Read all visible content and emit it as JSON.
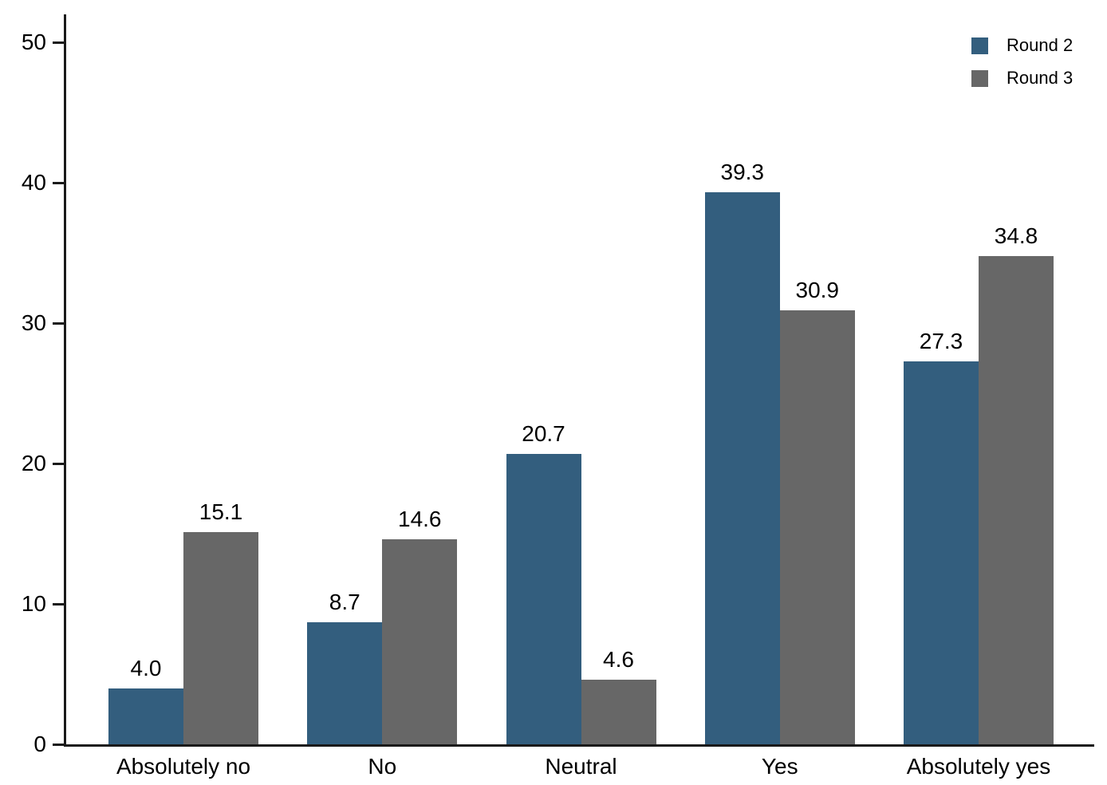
{
  "chart_data": {
    "type": "bar",
    "title": "",
    "xlabel": "",
    "ylabel": "",
    "categories": [
      "Absolutely no",
      "No",
      "Neutral",
      "Yes",
      "Absolutely yes"
    ],
    "series": [
      {
        "name": "Round 2",
        "color": "#335E7E",
        "values": [
          4.0,
          8.7,
          20.7,
          39.3,
          27.3
        ]
      },
      {
        "name": "Round 3",
        "color": "#676767",
        "values": [
          15.1,
          14.6,
          4.6,
          30.9,
          34.8
        ]
      }
    ],
    "value_label_decimals": 1,
    "ylim": [
      0,
      50
    ],
    "yticks": [
      0,
      10,
      20,
      30,
      40,
      50
    ],
    "grid": false,
    "legend_position": "top-right",
    "axis_color": "#1a1a1a",
    "text_color": "#000000",
    "background_color": "#ffffff"
  }
}
